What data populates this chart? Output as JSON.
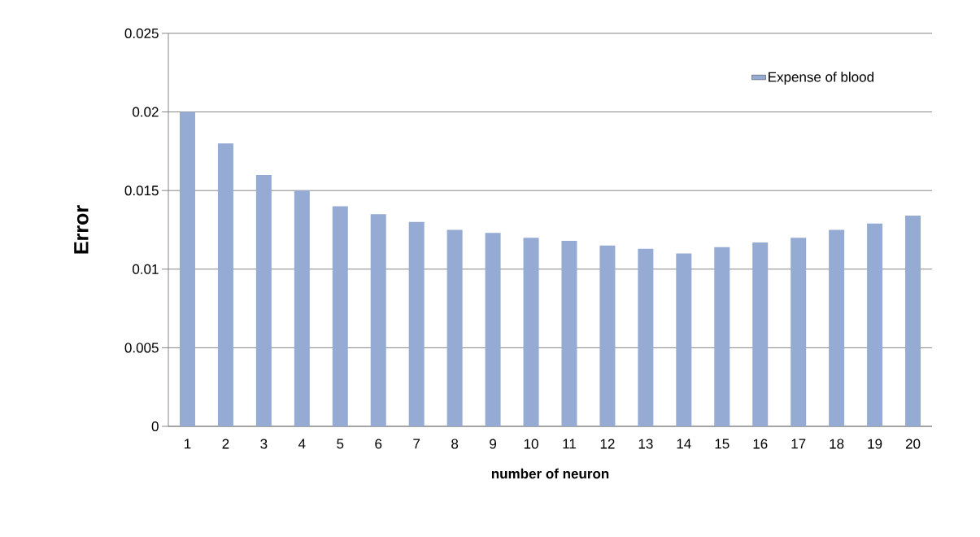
{
  "chart_data": {
    "type": "bar",
    "xlabel": "number of neuron",
    "ylabel": "Error",
    "categories": [
      "1",
      "2",
      "3",
      "4",
      "5",
      "6",
      "7",
      "8",
      "9",
      "10",
      "11",
      "12",
      "13",
      "14",
      "15",
      "16",
      "17",
      "18",
      "19",
      "20"
    ],
    "series": [
      {
        "name": "Expense of blood",
        "color": "#95abd3",
        "values": [
          0.02,
          0.018,
          0.016,
          0.015,
          0.014,
          0.0135,
          0.013,
          0.0125,
          0.0123,
          0.012,
          0.0118,
          0.0115,
          0.0113,
          0.011,
          0.0114,
          0.0117,
          0.012,
          0.0125,
          0.0129,
          0.0134
        ]
      }
    ],
    "ylim": [
      0,
      0.025
    ],
    "yticks": [
      0,
      0.005,
      0.01,
      0.015,
      0.02,
      0.025
    ],
    "grid": "y",
    "legend": "top right"
  }
}
